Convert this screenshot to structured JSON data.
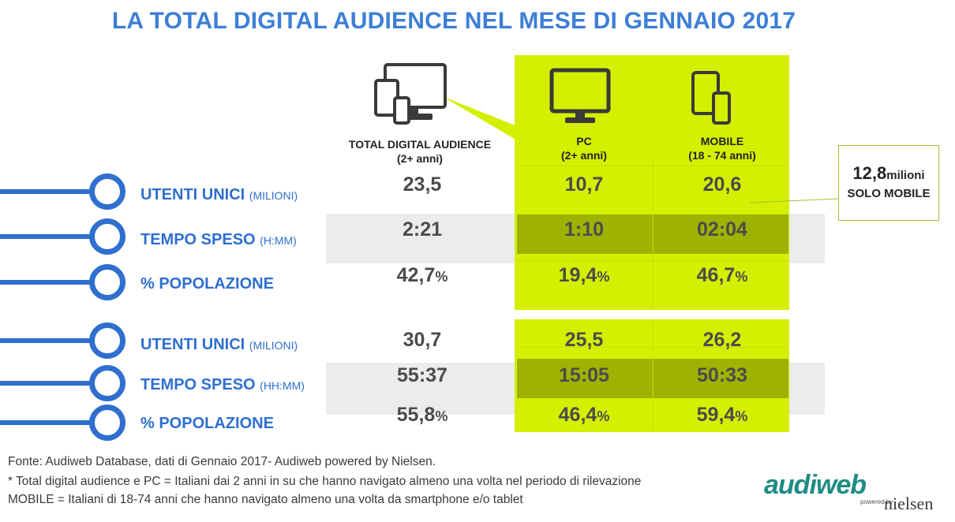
{
  "title": "LA TOTAL DIGITAL AUDIENCE NEL MESE DI GENNAIO 2017",
  "columns": {
    "total": {
      "name": "TOTAL DIGITAL AUDIENCE",
      "sub": "(2+ anni)"
    },
    "pc": {
      "name": "PC",
      "sub": "(2+ anni)"
    },
    "mobile": {
      "name": "MOBILE",
      "sub": "(18 - 74 anni)"
    }
  },
  "labels": {
    "utenti": "UTENTI UNICI",
    "utenti_unit": "(MILIONI)",
    "tempo": "TEMPO SPESO",
    "tempo_unit_1": "(H:MM)",
    "tempo_unit_2": "(HH:MM)",
    "popolazione": "% POPOLAZIONE",
    "pct": "%"
  },
  "block1": {
    "utenti": {
      "total": "23,5",
      "pc": "10,7",
      "mobile": "20,6"
    },
    "tempo": {
      "total": "2:21",
      "pc": "1:10",
      "mobile": "02:04"
    },
    "popolazione": {
      "total": "42,7",
      "pc": "19,4",
      "mobile": "46,7"
    }
  },
  "block2": {
    "utenti": {
      "total": "30,7",
      "pc": "25,5",
      "mobile": "26,2"
    },
    "tempo": {
      "total": "55:37",
      "pc": "15:05",
      "mobile": "50:33"
    },
    "popolazione": {
      "total": "55,8",
      "pc": "46,4",
      "mobile": "59,4"
    }
  },
  "callout": {
    "value": "12,8",
    "unit": "milioni",
    "text": "SOLO MOBILE"
  },
  "footer": {
    "line1": "Fonte: Audiweb Database, dati di Gennaio 2017- Audiweb powered by Nielsen.",
    "line2": "* Total digital audience e PC = Italiani dai 2 anni in su che hanno navigato almeno una volta nel periodo di rilevazione",
    "line3": "MOBILE = Italiani di 18-74 anni che hanno navigato almeno una volta da smartphone e/o tablet"
  },
  "logo": {
    "brand": "audiweb",
    "powered": "powered by",
    "partner": "nielsen"
  },
  "icons": [
    "devices-icon",
    "pc-monitor-icon",
    "mobile-devices-icon"
  ],
  "colors": {
    "accent_blue": "#3d7fd6",
    "highlight_green": "#d4ef00",
    "dark_green": "#9db300"
  }
}
